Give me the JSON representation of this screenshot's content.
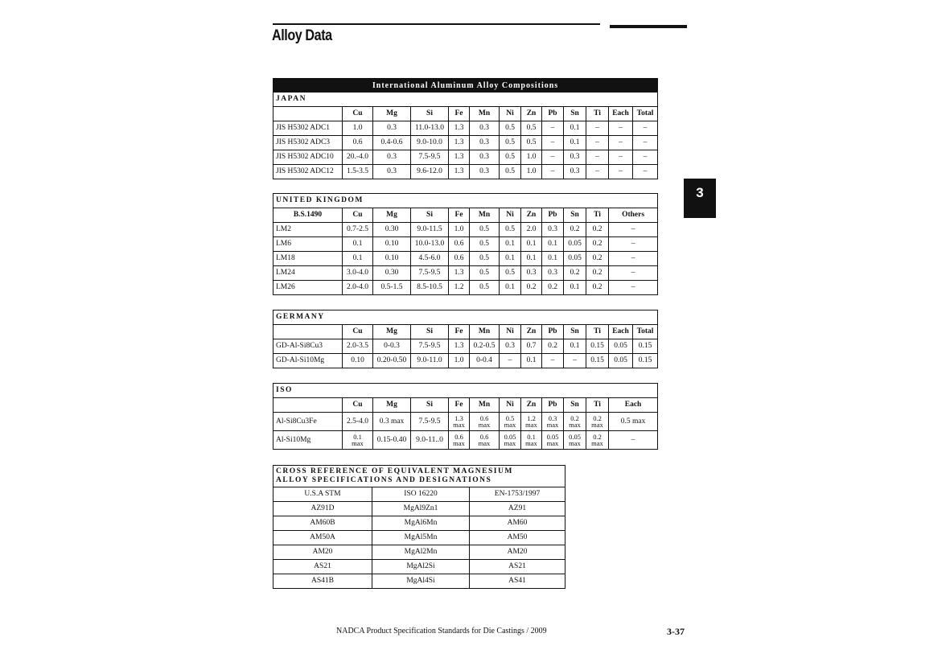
{
  "page_title": "Alloy Data",
  "section_tab": "3",
  "banner": "International Aluminum Alloy Compositions",
  "tables": [
    {
      "title": "JAPAN",
      "header": [
        "",
        "Cu",
        "Mg",
        "Si",
        "Fe",
        "Mn",
        "Ni",
        "Zn",
        "Pb",
        "Sn",
        "Ti",
        "Each",
        "Total"
      ],
      "rows": [
        [
          "JIS H5302 ADC1",
          "1.0",
          "0.3",
          "11.0-13.0",
          "1.3",
          "0.3",
          "0.5",
          "0.5",
          "–",
          "0.1",
          "–",
          "–",
          "–"
        ],
        [
          "JIS H5302 ADC3",
          "0.6",
          "0.4-0.6",
          "9.0-10.0",
          "1.3",
          "0.3",
          "0.5",
          "0.5",
          "–",
          "0.1",
          "–",
          "–",
          "–"
        ],
        [
          "JIS H5302 ADC10",
          "20.-4.0",
          "0.3",
          "7.5-9.5",
          "1.3",
          "0.3",
          "0.5",
          "1.0",
          "–",
          "0.3",
          "–",
          "–",
          "–"
        ],
        [
          "JIS H5302 ADC12",
          "1.5-3.5",
          "0.3",
          "9.6-12.0",
          "1.3",
          "0.3",
          "0.5",
          "1.0",
          "–",
          "0.3",
          "–",
          "–",
          "–"
        ]
      ]
    },
    {
      "title": "UNITED KINGDOM",
      "header": [
        "B.S.1490",
        "Cu",
        "Mg",
        "Si",
        "Fe",
        "Mn",
        "Ni",
        "Zn",
        "Pb",
        "Sn",
        "Ti",
        "Others"
      ],
      "rows": [
        [
          "LM2",
          "0.7-2.5",
          "0.30",
          "9.0-11.5",
          "1.0",
          "0.5",
          "0.5",
          "2.0",
          "0.3",
          "0.2",
          "0.2",
          "–"
        ],
        [
          "LM6",
          "0.1",
          "0.10",
          "10.0-13.0",
          "0.6",
          "0.5",
          "0.1",
          "0.1",
          "0.1",
          "0.05",
          "0.2",
          "–"
        ],
        [
          "LM18",
          "0.1",
          "0.10",
          "4.5-6.0",
          "0.6",
          "0.5",
          "0.1",
          "0.1",
          "0.1",
          "0.05",
          "0.2",
          "–"
        ],
        [
          "LM24",
          "3.0-4.0",
          "0.30",
          "7.5-9.5",
          "1.3",
          "0.5",
          "0.5",
          "0.3",
          "0.3",
          "0.2",
          "0.2",
          "–"
        ],
        [
          "LM26",
          "2.0-4.0",
          "0.5-1.5",
          "8.5-10.5",
          "1.2",
          "0.5",
          "0.1",
          "0.2",
          "0.2",
          "0.1",
          "0.2",
          "–"
        ]
      ]
    },
    {
      "title": "GERMANY",
      "header": [
        "",
        "Cu",
        "Mg",
        "Si",
        "Fe",
        "Mn",
        "Ni",
        "Zn",
        "Pb",
        "Sn",
        "Ti",
        "Each",
        "Total"
      ],
      "rows": [
        [
          "GD-Al-Si8Cu3",
          "2.0-3.5",
          "0-0.3",
          "7.5-9.5",
          "1.3",
          "0.2-0.5",
          "0.3",
          "0.7",
          "0.2",
          "0.1",
          "0.15",
          "0.05",
          "0.15"
        ],
        [
          "GD-Al-Si10Mg",
          "0.10",
          "0.20-0.50",
          "9.0-11.0",
          "1.0",
          "0-0.4",
          "–",
          "0.1",
          "–",
          "–",
          "0.15",
          "0.05",
          "0.15"
        ]
      ]
    },
    {
      "title": "ISO",
      "header": [
        "",
        "Cu",
        "Mg",
        "Si",
        "Fe",
        "Mn",
        "Ni",
        "Zn",
        "Pb",
        "Sn",
        "Ti",
        "Each"
      ],
      "rows": [
        [
          "Al-Si8Cu3Fe",
          "2.5-4.0",
          "0.3 max",
          "7.5-9.5",
          "1.3\nmax",
          "0.6\nmax",
          "0.5\nmax",
          "1.2\nmax",
          "0.3\nmax",
          "0.2\nmax",
          "0.2\nmax",
          "0.5 max"
        ],
        [
          "Al-Si10Mg",
          "0.1\nmax",
          "0.15-0.40",
          "9.0-11..0",
          "0.6\nmax",
          "0.6\nmax",
          "0.05\nmax",
          "0.1\nmax",
          "0.05\nmax",
          "0.05\nmax",
          "0.2\nmax",
          "–"
        ]
      ]
    }
  ],
  "magnesium": {
    "title": "CROSS REFERENCE OF EQUIVALENT MAGNESIUM\nALLOY SPECIFICATIONS AND DESIGNATIONS",
    "header": [
      "U.S.A STM",
      "ISO 16220",
      "EN-1753/1997"
    ],
    "rows": [
      [
        "AZ91D",
        "MgAl9Zn1",
        "AZ91"
      ],
      [
        "AM60B",
        "MgAl6Mn",
        "AM60"
      ],
      [
        "AM50A",
        "MgAl5Mn",
        "AM50"
      ],
      [
        "AM20",
        "MgAl2Mn",
        "AM20"
      ],
      [
        "AS21",
        "MgAl2Si",
        "AS21"
      ],
      [
        "AS41B",
        "MgAl4Si",
        "AS41"
      ]
    ]
  },
  "footer": "NADCA Product Specification Standards for Die Castings / 2009",
  "page_number": "3-37"
}
